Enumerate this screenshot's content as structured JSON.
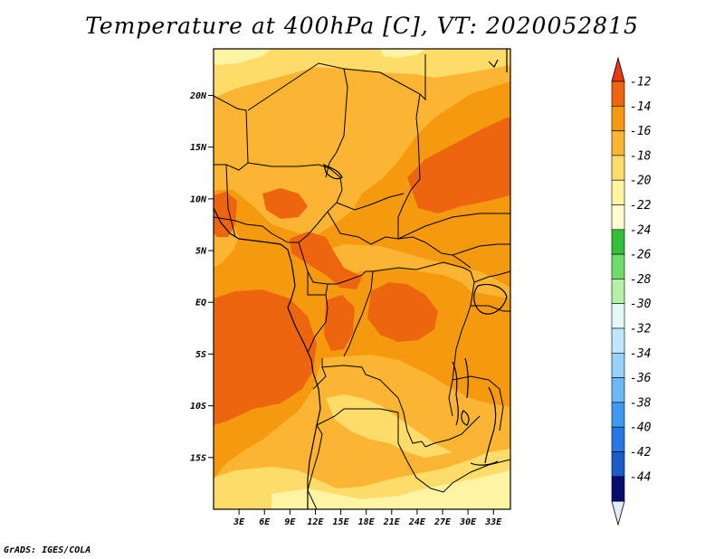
{
  "title": "Temperature at 400hPa [C], VT: 2020052815",
  "credit": "GrADS: IGES/COLA",
  "map": {
    "lon_range": [
      0,
      35
    ],
    "lat_range": [
      -20,
      24.5
    ],
    "lat_ticks": [
      {
        "value": 20,
        "label": "20N"
      },
      {
        "value": 15,
        "label": "15N"
      },
      {
        "value": 10,
        "label": "10N"
      },
      {
        "value": 5,
        "label": "5N"
      },
      {
        "value": 0,
        "label": "EQ"
      },
      {
        "value": -5,
        "label": "5S"
      },
      {
        "value": -10,
        "label": "10S"
      },
      {
        "value": -15,
        "label": "15S"
      }
    ],
    "lon_ticks": [
      {
        "value": 3,
        "label": "3E"
      },
      {
        "value": 6,
        "label": "6E"
      },
      {
        "value": 9,
        "label": "9E"
      },
      {
        "value": 12,
        "label": "12E"
      },
      {
        "value": 15,
        "label": "15E"
      },
      {
        "value": 18,
        "label": "18E"
      },
      {
        "value": 21,
        "label": "21E"
      },
      {
        "value": 24,
        "label": "24E"
      },
      {
        "value": 27,
        "label": "27E"
      },
      {
        "value": 30,
        "label": "30E"
      },
      {
        "value": 33,
        "label": "33E"
      }
    ]
  },
  "colorbar": {
    "levels": [
      {
        "label": "-12",
        "color": "#ee6510"
      },
      {
        "label": "-14",
        "color": "#f59a0e"
      },
      {
        "label": "-16",
        "color": "#fbb532"
      },
      {
        "label": "-18",
        "color": "#fddc6a"
      },
      {
        "label": "-20",
        "color": "#fff3a4"
      },
      {
        "label": "-22",
        "color": "#fffdd0"
      },
      {
        "label": "-24",
        "color": "#32c03a"
      },
      {
        "label": "-26",
        "color": "#6fdc6a"
      },
      {
        "label": "-28",
        "color": "#b4f0a8"
      },
      {
        "label": "-30",
        "color": "#e3faf6"
      },
      {
        "label": "-32",
        "color": "#bfe6fb"
      },
      {
        "label": "-34",
        "color": "#96d2f9"
      },
      {
        "label": "-36",
        "color": "#6bb8f6"
      },
      {
        "label": "-38",
        "color": "#3f99ee"
      },
      {
        "label": "-40",
        "color": "#2678e2"
      },
      {
        "label": "-42",
        "color": "#1a5cc8"
      },
      {
        "label": "-44",
        "color": "#0e3a9e"
      }
    ],
    "top_triangle_color": "#e83a10",
    "bottom_triangle_color": "#e4ebfb",
    "min_band_color": "#080c6e"
  }
}
